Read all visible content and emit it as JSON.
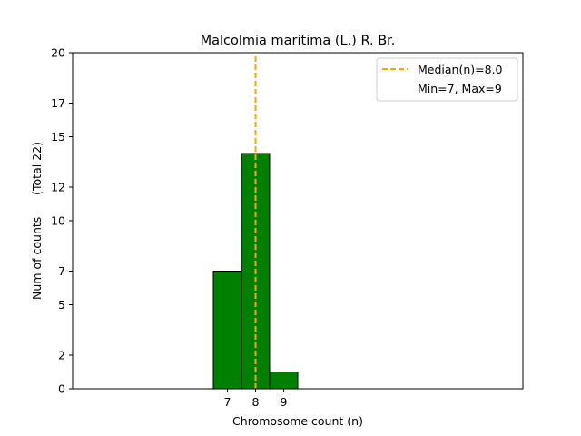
{
  "chart_data": {
    "type": "bar",
    "title": "Malcolmia maritima (L.) R. Br.",
    "xlabel": "Chromosome count (n)",
    "ylabel": "Num of counts      (Total 22)",
    "xlim": [
      1.5,
      17.5
    ],
    "ylim": [
      0,
      20
    ],
    "yticks": [
      0,
      2,
      5,
      7,
      10,
      12,
      15,
      17,
      20
    ],
    "xticks": [
      7,
      8,
      9
    ],
    "bars": [
      {
        "x": 7,
        "value": 7
      },
      {
        "x": 8,
        "value": 14
      },
      {
        "x": 9,
        "value": 1
      }
    ],
    "baseline_range": [
      1.5,
      14
    ],
    "median": 8.0,
    "bar_color": "#008000",
    "median_color": "#FFA500",
    "legend": {
      "placement": "top-right",
      "entries": [
        "Median(n)=8.0",
        "Min=7, Max=9"
      ]
    },
    "grid": false
  }
}
